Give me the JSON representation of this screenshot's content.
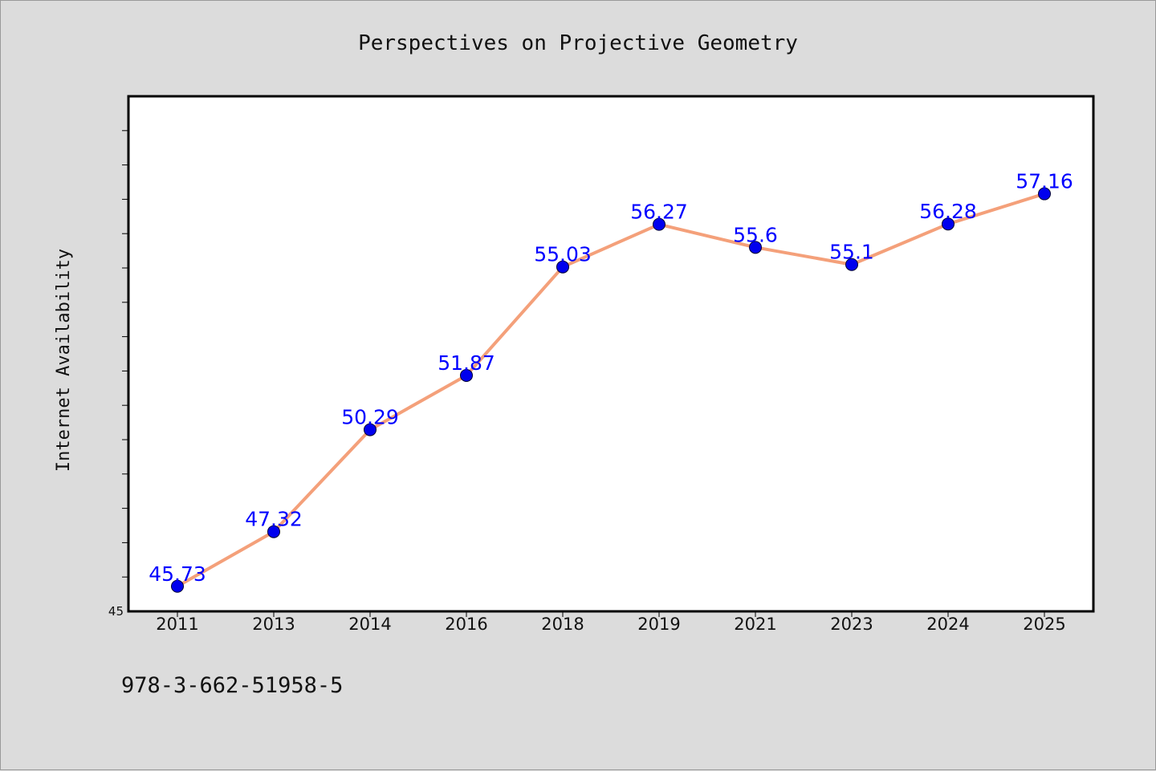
{
  "footer_code": "978-3-662-51958-5",
  "colors": {
    "background": "#dcdcdc",
    "plot_background": "#ffffff",
    "line": "#f4a07a",
    "marker": "#0000ee",
    "data_label": "#0000ff"
  },
  "chart_data": {
    "type": "line",
    "title": "Perspectives on Projective Geometry",
    "xlabel": "",
    "ylabel": "Internet Availability",
    "categories": [
      "2011",
      "2013",
      "2014",
      "2016",
      "2018",
      "2019",
      "2021",
      "2023",
      "2024",
      "2025"
    ],
    "series": [
      {
        "values": [
          45.73,
          47.32,
          50.29,
          51.87,
          55.03,
          56.27,
          55.6,
          55.1,
          56.28,
          57.16
        ],
        "data_labels": [
          "45.73",
          "47.32",
          "50.29",
          "51.87",
          "55.03",
          "56.27",
          "55.6",
          "55.1",
          "56.28",
          "57.16"
        ]
      }
    ],
    "ylim": [
      45,
      60
    ],
    "y_tick_labels": [
      {
        "value": 45,
        "label": "45"
      }
    ],
    "y_minor_step": 1,
    "grid": false,
    "legend": "none"
  }
}
